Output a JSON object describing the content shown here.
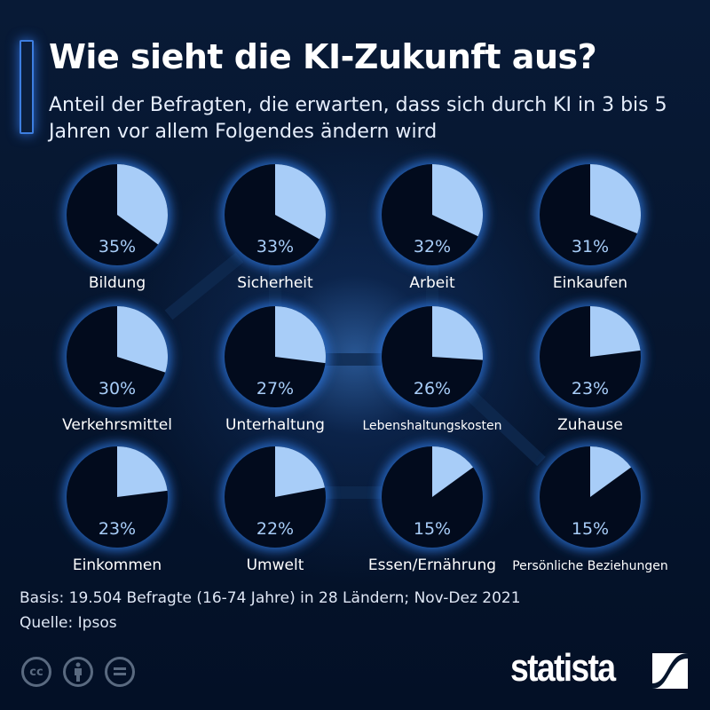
{
  "title": "Wie sieht die KI-Zukunft aus?",
  "subtitle": "Anteil der Befragten, die erwarten, dass sich durch KI in 3 bis 5 Jahren vor allem Folgendes ändern wird",
  "chart_data": {
    "type": "pie",
    "categories": [
      "Bildung",
      "Sicherheit",
      "Arbeit",
      "Einkaufen",
      "Verkehrsmittel",
      "Unterhaltung",
      "Lebenshaltungskosten",
      "Zuhause",
      "Einkommen",
      "Umwelt",
      "Essen/Ernährung",
      "Persönliche Beziehungen"
    ],
    "values": [
      35,
      33,
      32,
      31,
      30,
      27,
      26,
      23,
      23,
      22,
      15,
      15
    ],
    "labels": [
      "35%",
      "33%",
      "32%",
      "31%",
      "30%",
      "27%",
      "26%",
      "23%",
      "23%",
      "22%",
      "15%",
      "15%"
    ],
    "unit": "%",
    "colors": {
      "slice": "#a8cdf8",
      "rest": "#020b1d",
      "percent_text": "#a8cdf8",
      "glow": "#2f78e0"
    }
  },
  "footer": {
    "basis": "Basis: 19.504 Befragte (16-74 Jahre) in 28 Ländern; Nov-Dez 2021",
    "source": "Quelle: Ipsos"
  },
  "license_icons": [
    "cc-icon",
    "by-icon",
    "nd-icon"
  ],
  "logo": "statista"
}
